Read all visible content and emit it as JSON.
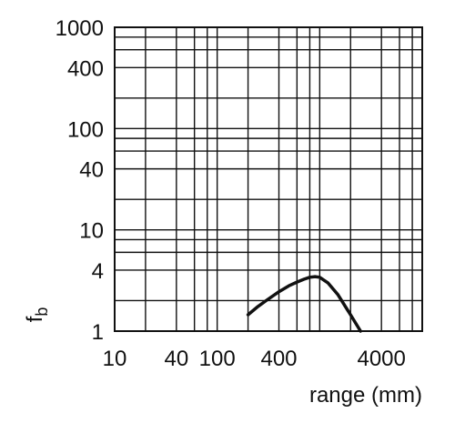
{
  "chart_data": {
    "type": "line",
    "xscale": "log",
    "yscale": "log",
    "xlim": [
      10,
      10000
    ],
    "ylim": [
      1,
      1000
    ],
    "xlabel": "range (mm)",
    "ylabel": "f",
    "ylabel_subscript": "b",
    "x_ticks": [
      10,
      40,
      100,
      400,
      4000
    ],
    "x_tick_labels": [
      "10",
      "40",
      "100",
      "400",
      "4000"
    ],
    "y_ticks": [
      1,
      4,
      10,
      40,
      100,
      400,
      1000
    ],
    "y_tick_labels": [
      "1",
      "4",
      "10",
      "40",
      "100",
      "400",
      "1000"
    ],
    "x_gridlines": [
      10,
      20,
      40,
      60,
      80,
      100,
      200,
      400,
      600,
      800,
      1000,
      2000,
      4000,
      6000,
      8000,
      10000
    ],
    "y_gridlines": [
      1,
      2,
      4,
      6,
      8,
      10,
      20,
      40,
      60,
      80,
      100,
      200,
      400,
      600,
      800,
      1000
    ],
    "grid": true,
    "legend": "none",
    "series": [
      {
        "x": [
          200,
          250,
          300,
          400,
          500,
          600,
          700,
          800,
          900,
          1000,
          1200,
          1500,
          2000,
          2500
        ],
        "y": [
          1.45,
          1.75,
          2.0,
          2.45,
          2.8,
          3.05,
          3.25,
          3.4,
          3.45,
          3.4,
          3.0,
          2.3,
          1.45,
          1.0
        ]
      }
    ]
  }
}
